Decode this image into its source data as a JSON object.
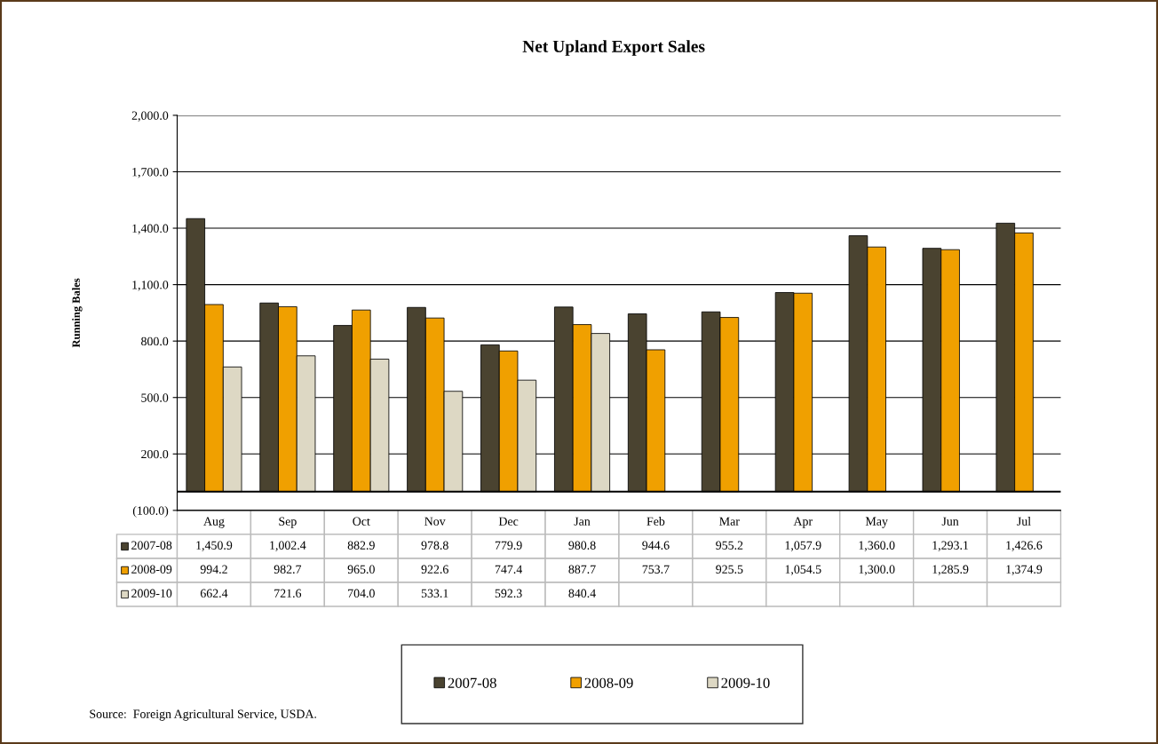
{
  "chart_data": {
    "type": "bar",
    "title": "Net Upland Export Sales",
    "ylabel": "Running Bales",
    "categories": [
      "Aug",
      "Sep",
      "Oct",
      "Nov",
      "Dec",
      "Jan",
      "Feb",
      "Mar",
      "Apr",
      "May",
      "Jun",
      "Jul"
    ],
    "series": [
      {
        "name": "2007-08",
        "color": "#4a4330",
        "values": [
          1450.9,
          1002.4,
          882.9,
          978.8,
          779.9,
          980.8,
          944.6,
          955.2,
          1057.9,
          1360.0,
          1293.1,
          1426.6
        ],
        "value_labels": [
          "1,450.9",
          "1,002.4",
          "882.9",
          "978.8",
          "779.9",
          "980.8",
          "944.6",
          "955.2",
          "1,057.9",
          "1,360.0",
          "1,293.1",
          "1,426.6"
        ]
      },
      {
        "name": "2008-09",
        "color": "#f0a000",
        "values": [
          994.2,
          982.7,
          965.0,
          922.6,
          747.4,
          887.7,
          753.7,
          925.5,
          1054.5,
          1300.0,
          1285.9,
          1374.9
        ],
        "value_labels": [
          "994.2",
          "982.7",
          "965.0",
          "922.6",
          "747.4",
          "887.7",
          "753.7",
          "925.5",
          "1,054.5",
          "1,300.0",
          "1,285.9",
          "1,374.9"
        ]
      },
      {
        "name": "2009-10",
        "color": "#ddd8c4",
        "values": [
          662.4,
          721.6,
          704.0,
          533.1,
          592.3,
          840.4,
          null,
          null,
          null,
          null,
          null,
          null
        ],
        "value_labels": [
          "662.4",
          "721.6",
          "704.0",
          "533.1",
          "592.3",
          "840.4",
          null,
          null,
          null,
          null,
          null,
          null
        ]
      }
    ],
    "ylim": [
      -100,
      2000
    ],
    "yticks": [
      {
        "value": -100,
        "label": "(100.0)"
      },
      {
        "value": 200,
        "label": "200.0"
      },
      {
        "value": 500,
        "label": "500.0"
      },
      {
        "value": 800,
        "label": "800.0"
      },
      {
        "value": 1100,
        "label": "1,100.0"
      },
      {
        "value": 1400,
        "label": "1,400.0"
      },
      {
        "value": 1700,
        "label": "1,700.0"
      },
      {
        "value": 2000,
        "label": "2,000.0"
      }
    ],
    "grid": "y",
    "legend": "bottom",
    "annotations": [
      "Source:  Foreign Agricultural Service, USDA."
    ]
  }
}
